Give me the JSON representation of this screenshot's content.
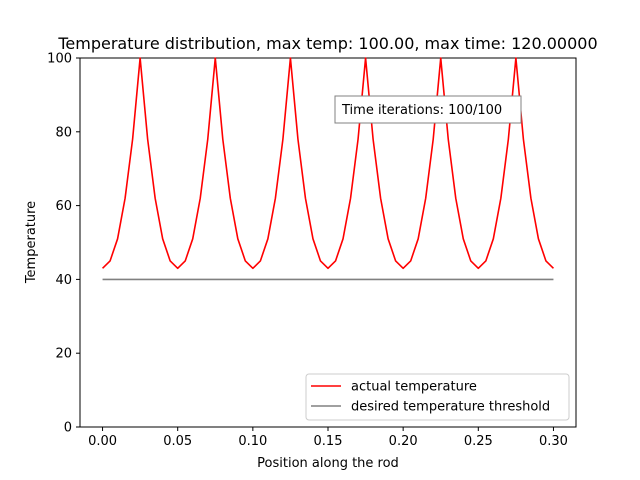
{
  "chart_data": {
    "type": "line",
    "title": "Temperature distribution, max temp: 100.00, max time: 120.00000",
    "xlabel": "Position along the rod",
    "ylabel": "Temperature",
    "xlim": [
      -0.015,
      0.315
    ],
    "ylim": [
      0,
      100
    ],
    "x_ticks": [
      0.0,
      0.05,
      0.1,
      0.15,
      0.2,
      0.25,
      0.3
    ],
    "x_tick_labels": [
      "0.00",
      "0.05",
      "0.10",
      "0.15",
      "0.20",
      "0.25",
      "0.30"
    ],
    "y_ticks": [
      0,
      20,
      40,
      60,
      80,
      100
    ],
    "y_tick_labels": [
      "0",
      "20",
      "40",
      "60",
      "80",
      "100"
    ],
    "grid": false,
    "legend_position": "lower-right",
    "annotation": "Time iterations: 100/100",
    "series": [
      {
        "name": "actual temperature",
        "color": "#ff0000",
        "x": [
          0.0,
          0.005,
          0.01,
          0.015,
          0.02,
          0.025,
          0.03,
          0.035,
          0.04,
          0.045,
          0.05,
          0.055,
          0.06,
          0.065,
          0.07,
          0.075,
          0.08,
          0.085,
          0.09,
          0.095,
          0.1,
          0.105,
          0.11,
          0.115,
          0.12,
          0.125,
          0.13,
          0.135,
          0.14,
          0.145,
          0.15,
          0.155,
          0.16,
          0.165,
          0.17,
          0.175,
          0.18,
          0.185,
          0.19,
          0.195,
          0.2,
          0.205,
          0.21,
          0.215,
          0.22,
          0.225,
          0.23,
          0.235,
          0.24,
          0.245,
          0.25,
          0.255,
          0.26,
          0.265,
          0.27,
          0.275,
          0.28,
          0.285,
          0.29,
          0.295,
          0.3
        ],
        "y": [
          43.0,
          45.0,
          51.0,
          62.0,
          78.0,
          100.0,
          78.0,
          62.0,
          51.0,
          45.0,
          43.0,
          45.0,
          51.0,
          62.0,
          78.0,
          100.0,
          78.0,
          62.0,
          51.0,
          45.0,
          43.0,
          45.0,
          51.0,
          62.0,
          78.0,
          100.0,
          78.0,
          62.0,
          51.0,
          45.0,
          43.0,
          45.0,
          51.0,
          62.0,
          78.0,
          100.0,
          78.0,
          62.0,
          51.0,
          45.0,
          43.0,
          45.0,
          51.0,
          62.0,
          78.0,
          100.0,
          78.0,
          62.0,
          51.0,
          45.0,
          43.0,
          45.0,
          51.0,
          62.0,
          78.0,
          100.0,
          78.0,
          62.0,
          51.0,
          45.0,
          43.0
        ]
      },
      {
        "name": "desired temperature threshold",
        "color": "#808080",
        "x": [
          0.0,
          0.3
        ],
        "y": [
          40.0,
          40.0
        ]
      }
    ]
  }
}
